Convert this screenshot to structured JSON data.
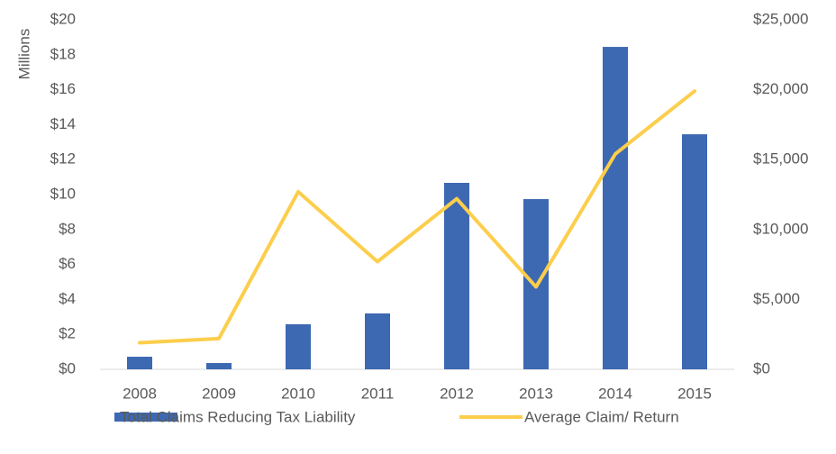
{
  "chart_data": {
    "type": "bar",
    "y_axis_label": "Millions",
    "categories": [
      "2008",
      "2009",
      "2010",
      "2011",
      "2012",
      "2013",
      "2014",
      "2015"
    ],
    "series": [
      {
        "name": "Total Claims Reducing Tax Liability",
        "type": "bar",
        "color": "#3d68b2",
        "values": [
          0.72,
          0.36,
          2.58,
          3.2,
          10.67,
          9.74,
          18.45,
          13.45
        ]
      },
      {
        "name": "Average Claim/ Return",
        "type": "line",
        "axis": "y2",
        "color": "#fcce4c",
        "values": [
          1900,
          2200,
          12700,
          7700,
          12200,
          5900,
          15400,
          19900
        ]
      }
    ],
    "ylim": [
      0,
      20
    ],
    "yticks": [
      {
        "value": 0,
        "label": "$0"
      },
      {
        "value": 2,
        "label": "$2"
      },
      {
        "value": 4,
        "label": "$4"
      },
      {
        "value": 6,
        "label": "$6"
      },
      {
        "value": 8,
        "label": "$8"
      },
      {
        "value": 10,
        "label": "$10"
      },
      {
        "value": 12,
        "label": "$12"
      },
      {
        "value": 14,
        "label": "$14"
      },
      {
        "value": 16,
        "label": "$16"
      },
      {
        "value": 18,
        "label": "$18"
      },
      {
        "value": 20,
        "label": "$20"
      }
    ],
    "y2lim": [
      0,
      25000
    ],
    "y2ticks": [
      {
        "value": 0,
        "label": "$0"
      },
      {
        "value": 5000,
        "label": "$5,000"
      },
      {
        "value": 10000,
        "label": "$10,000"
      },
      {
        "value": 15000,
        "label": "$15,000"
      },
      {
        "value": 20000,
        "label": "$20,000"
      },
      {
        "value": 25000,
        "label": "$25,000"
      }
    ],
    "grid": false,
    "legend": "bottom"
  }
}
